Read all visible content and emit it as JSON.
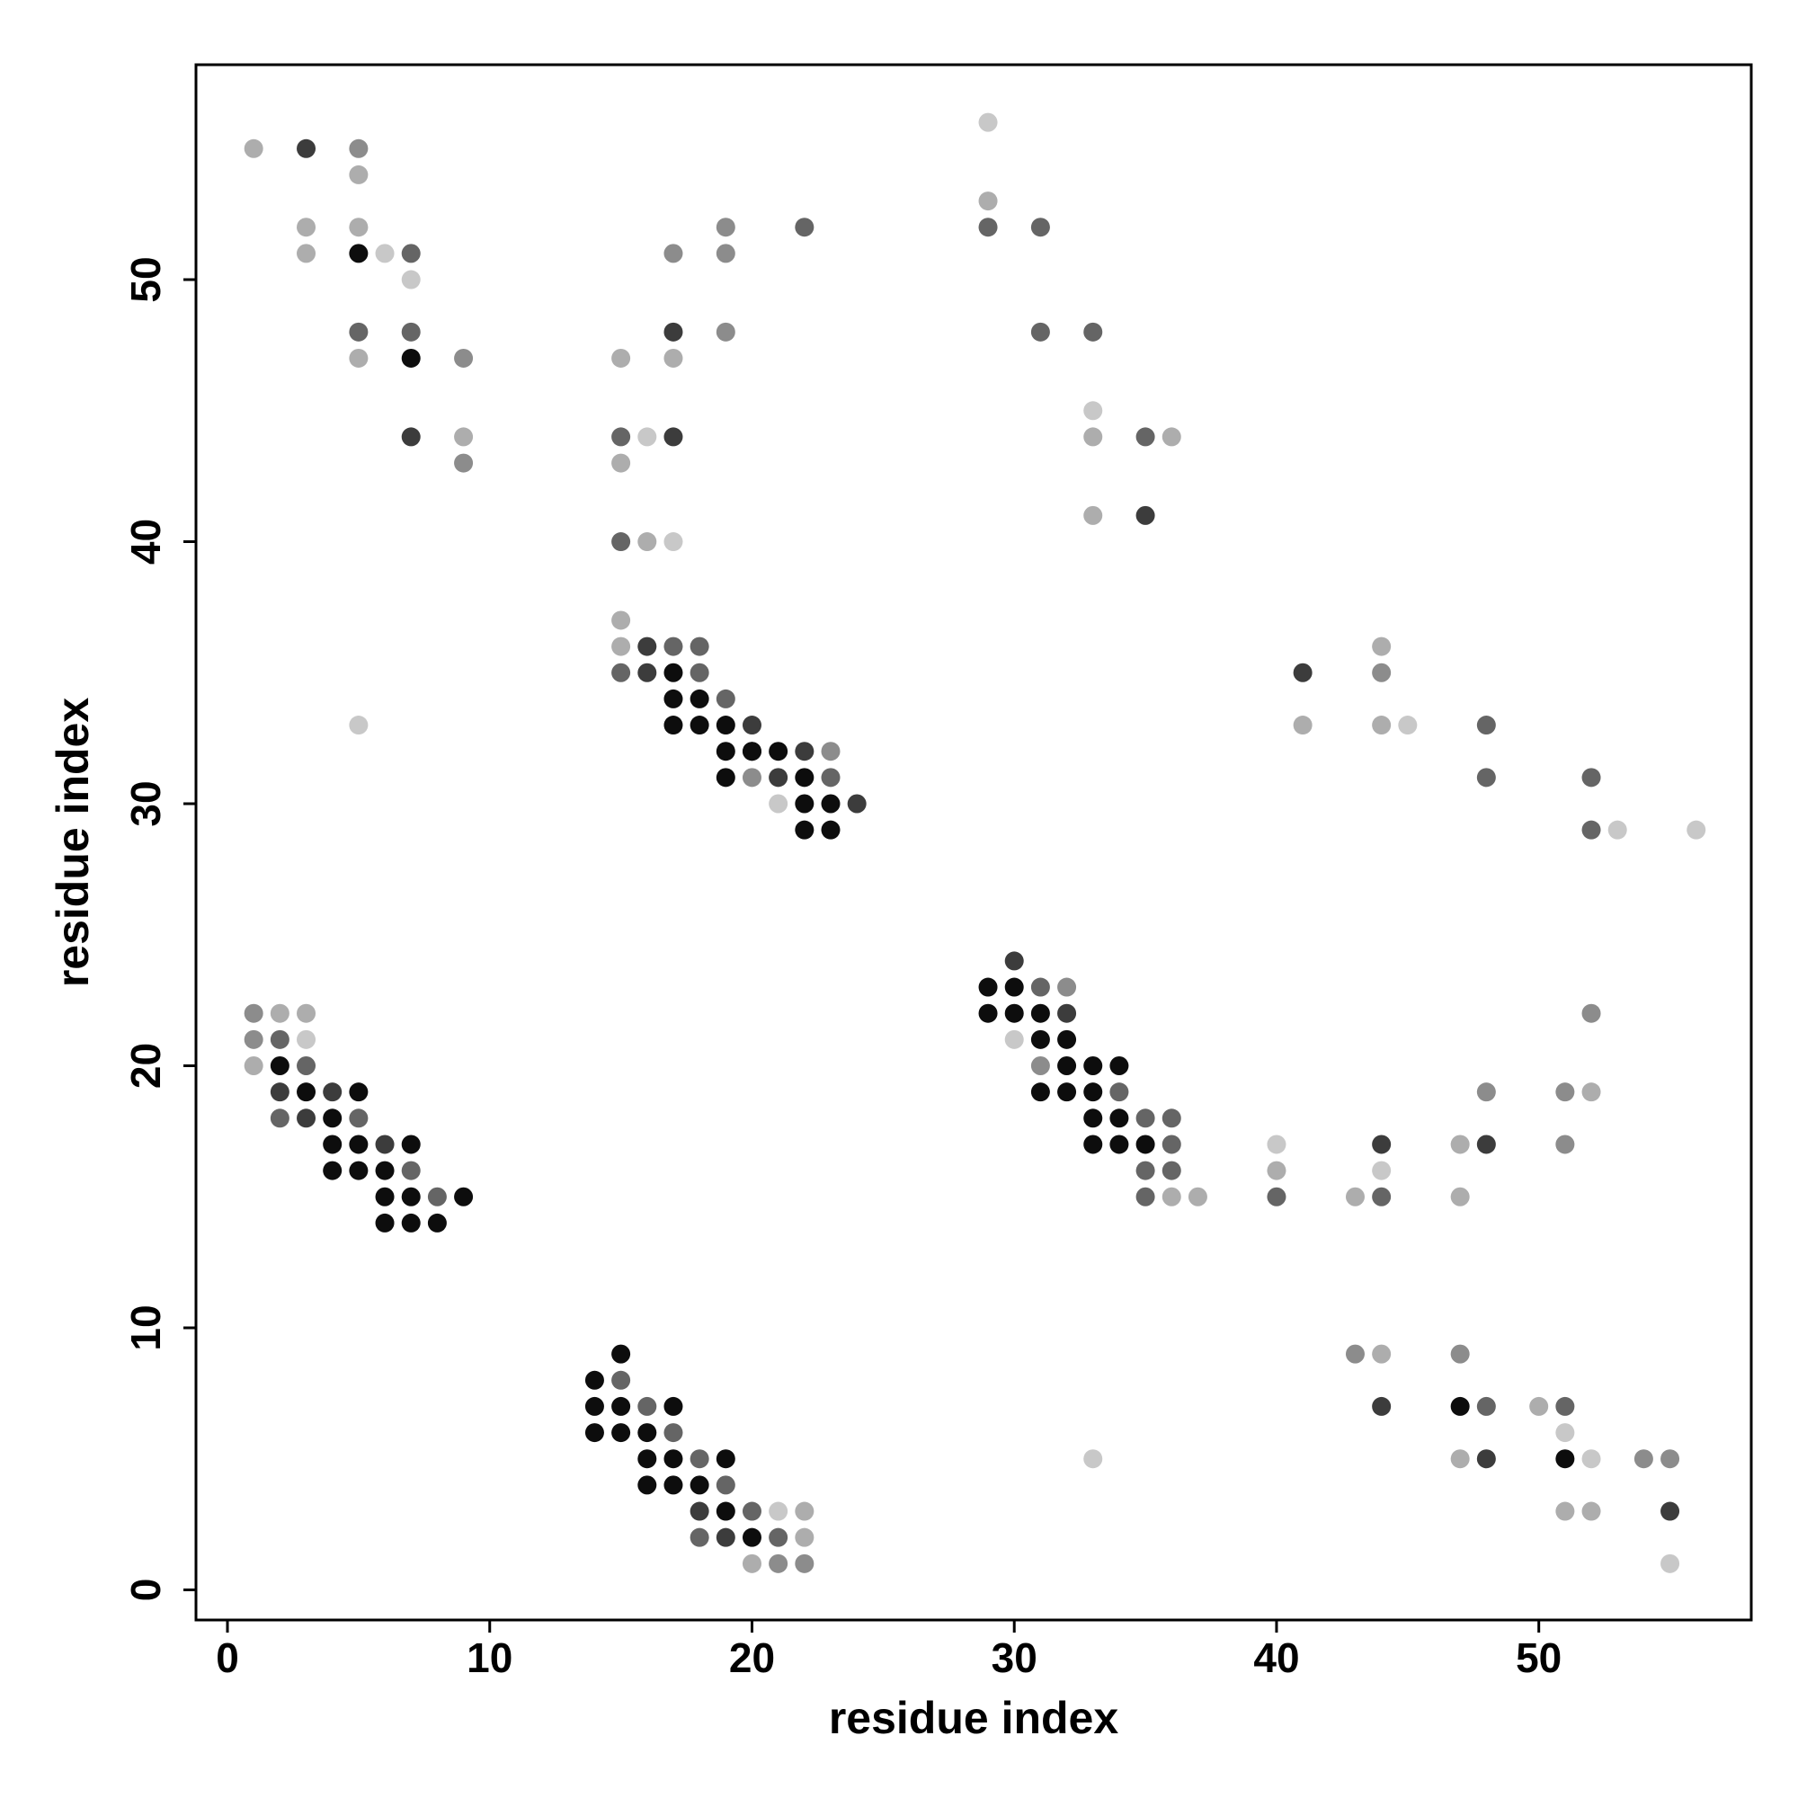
{
  "chart_data": {
    "type": "scatter",
    "xlabel": "residue index",
    "ylabel": "residue index",
    "xlim": [
      -1.2,
      58.1
    ],
    "ylim": [
      -1.15,
      58.2
    ],
    "xticks": [
      0,
      10,
      20,
      30,
      40,
      50
    ],
    "yticks": [
      0,
      10,
      20,
      30,
      40,
      50
    ],
    "series": [
      {
        "color": "#0d0d0d",
        "x": [
          5,
          7,
          17,
          17,
          18,
          17,
          18,
          19,
          20,
          19,
          20,
          21,
          19,
          22,
          22,
          23,
          22,
          23,
          2,
          3,
          5,
          4,
          4,
          5,
          7,
          4,
          5,
          6,
          6,
          7,
          9,
          6,
          7,
          8,
          15,
          14,
          14,
          15,
          17,
          14,
          15,
          16,
          16,
          17,
          19,
          16,
          17,
          18,
          19,
          20,
          29,
          30,
          29,
          30,
          31,
          31,
          32,
          32,
          33,
          34,
          31,
          32,
          33,
          33,
          34,
          33,
          34,
          35,
          47,
          51
        ],
        "values": [
          51,
          47,
          35,
          34,
          34,
          33,
          33,
          33,
          32,
          32,
          32,
          32,
          31,
          31,
          30,
          30,
          29,
          29,
          20,
          19,
          19,
          18,
          17,
          17,
          17,
          16,
          16,
          16,
          15,
          15,
          15,
          14,
          14,
          14,
          9,
          8,
          7,
          7,
          7,
          6,
          6,
          6,
          5,
          5,
          5,
          4,
          4,
          4,
          3,
          2,
          23,
          23,
          22,
          22,
          22,
          21,
          21,
          20,
          20,
          20,
          19,
          19,
          19,
          18,
          18,
          17,
          17,
          17,
          7,
          5
        ]
      },
      {
        "color": "#3c3c3c",
        "x": [
          3,
          17,
          7,
          17,
          16,
          16,
          20,
          22,
          21,
          24,
          35,
          41,
          2,
          4,
          3,
          6,
          18,
          19,
          30,
          32,
          44,
          48,
          44,
          48,
          55
        ],
        "values": [
          55,
          48,
          44,
          44,
          36,
          35,
          33,
          32,
          31,
          30,
          41,
          35,
          19,
          19,
          18,
          17,
          3,
          2,
          24,
          22,
          17,
          17,
          7,
          5,
          3
        ]
      },
      {
        "color": "#656565",
        "x": [
          7,
          5,
          7,
          22,
          15,
          15,
          17,
          18,
          15,
          18,
          19,
          23,
          29,
          31,
          31,
          33,
          35,
          48,
          48,
          52,
          52,
          2,
          3,
          2,
          5,
          7,
          8,
          15,
          16,
          17,
          18,
          19,
          20,
          18,
          21,
          31,
          34,
          35,
          36,
          36,
          35,
          36,
          35,
          40,
          44,
          48,
          51
        ],
        "values": [
          51,
          48,
          48,
          52,
          44,
          40,
          36,
          36,
          35,
          35,
          34,
          31,
          52,
          52,
          48,
          48,
          44,
          33,
          31,
          31,
          29,
          21,
          20,
          18,
          18,
          16,
          15,
          8,
          7,
          6,
          5,
          4,
          3,
          2,
          2,
          23,
          19,
          18,
          18,
          17,
          16,
          16,
          15,
          15,
          15,
          7,
          7
        ]
      },
      {
        "color": "#8c8c8c",
        "x": [
          5,
          9,
          9,
          17,
          19,
          19,
          19,
          20,
          23,
          44,
          1,
          1,
          21,
          22,
          32,
          31,
          48,
          51,
          51,
          52,
          43,
          47,
          54,
          55
        ],
        "values": [
          55,
          47,
          43,
          51,
          52,
          51,
          48,
          31,
          32,
          35,
          22,
          21,
          1,
          1,
          23,
          20,
          19,
          19,
          17,
          22,
          9,
          9,
          5,
          5
        ]
      },
      {
        "color": "#adadad",
        "x": [
          1,
          5,
          3,
          5,
          3,
          5,
          9,
          15,
          17,
          15,
          15,
          15,
          16,
          29,
          33,
          33,
          36,
          44,
          41,
          44,
          2,
          3,
          1,
          22,
          22,
          20,
          36,
          37,
          40,
          43,
          47,
          47,
          52,
          44,
          50,
          47,
          51,
          52
        ],
        "values": [
          55,
          54,
          52,
          52,
          51,
          47,
          44,
          47,
          47,
          43,
          37,
          36,
          40,
          53,
          44,
          41,
          44,
          36,
          33,
          33,
          22,
          22,
          20,
          3,
          2,
          1,
          15,
          15,
          16,
          15,
          17,
          15,
          19,
          9,
          7,
          5,
          3,
          3
        ]
      },
      {
        "color": "#c8c8c8",
        "x": [
          6,
          7,
          5,
          16,
          17,
          21,
          29,
          33,
          45,
          53,
          56,
          3,
          21,
          30,
          40,
          44,
          51,
          52,
          33,
          55
        ],
        "values": [
          51,
          50,
          33,
          44,
          40,
          30,
          56,
          45,
          33,
          29,
          29,
          21,
          3,
          21,
          17,
          16,
          6,
          5,
          5,
          1
        ]
      }
    ]
  }
}
